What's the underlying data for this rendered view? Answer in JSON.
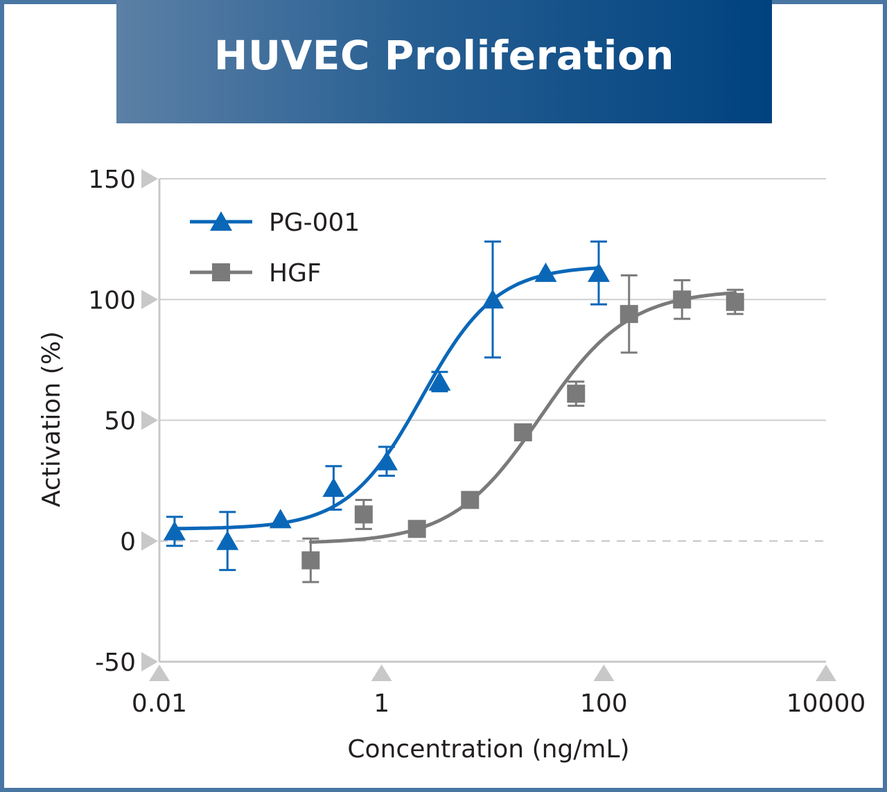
{
  "chart_data": {
    "type": "scatter",
    "title": "HUVEC Proliferation",
    "xlabel": "Concentration (ng/mL)",
    "ylabel": "Activation (%)",
    "xscale": "log",
    "xlim": [
      0.01,
      10000
    ],
    "ylim": [
      -50,
      150
    ],
    "xticks": [
      0.01,
      1,
      100,
      10000
    ],
    "xtick_labels": [
      "0.01",
      "1",
      "100",
      "10000"
    ],
    "yticks": [
      -50,
      0,
      50,
      100,
      150
    ],
    "ytick_labels": [
      "-50",
      "0",
      "50",
      "100",
      "150"
    ],
    "grid": "horizontal",
    "zero_line": "dashed",
    "legend_position": "top-left",
    "series": [
      {
        "name": "PG-001",
        "color": "#0a67b8",
        "marker": "triangle",
        "points": [
          {
            "x": 0.0137,
            "y": 4,
            "err": 6
          },
          {
            "x": 0.041,
            "y": 0,
            "err": 12
          },
          {
            "x": 0.123,
            "y": 9,
            "err": 0
          },
          {
            "x": 0.37,
            "y": 22,
            "err": 9
          },
          {
            "x": 1.11,
            "y": 33,
            "err": 6
          },
          {
            "x": 3.33,
            "y": 66,
            "err": 4
          },
          {
            "x": 10,
            "y": 100,
            "err": 24
          },
          {
            "x": 30,
            "y": 111,
            "err": 0
          },
          {
            "x": 90,
            "y": 111,
            "err": 13
          }
        ],
        "fit": {
          "bottom": 5,
          "top": 114,
          "ec50": 2.3,
          "hill": 1.3,
          "xmin": 0.0137,
          "xmax": 90
        }
      },
      {
        "name": "HGF",
        "color": "#7a7a7a",
        "marker": "square",
        "points": [
          {
            "x": 0.23,
            "y": -8,
            "err": 9
          },
          {
            "x": 0.69,
            "y": 11,
            "err": 6
          },
          {
            "x": 2.08,
            "y": 5,
            "err": 0
          },
          {
            "x": 6.25,
            "y": 17,
            "err": 0
          },
          {
            "x": 18.75,
            "y": 45,
            "err": 0
          },
          {
            "x": 56.25,
            "y": 61,
            "err": 5
          },
          {
            "x": 168.75,
            "y": 94,
            "err": 16
          },
          {
            "x": 506,
            "y": 100,
            "err": 8
          },
          {
            "x": 1518,
            "y": 99,
            "err": 5
          }
        ],
        "fit": {
          "bottom": -1,
          "top": 104,
          "ec50": 27,
          "hill": 1.1,
          "xmin": 0.23,
          "xmax": 1518
        }
      }
    ]
  }
}
